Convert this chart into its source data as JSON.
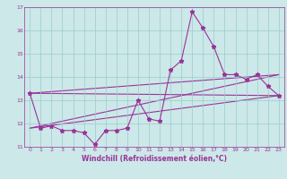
{
  "xlabel": "Windchill (Refroidissement éolien,°C)",
  "bg_color": "#cce8e8",
  "line_color": "#993399",
  "grid_color": "#99cccc",
  "hours": [
    0,
    1,
    2,
    3,
    4,
    5,
    6,
    7,
    8,
    9,
    10,
    11,
    12,
    13,
    14,
    15,
    16,
    17,
    18,
    19,
    20,
    21,
    22,
    23
  ],
  "windchill": [
    13.3,
    11.8,
    11.9,
    11.7,
    11.7,
    11.6,
    11.1,
    11.7,
    11.7,
    11.8,
    13.0,
    12.2,
    12.1,
    14.3,
    14.7,
    16.8,
    16.1,
    15.3,
    14.1,
    14.1,
    13.9,
    14.1,
    13.6,
    13.2
  ],
  "ylim": [
    11.0,
    17.0
  ],
  "xlim": [
    -0.5,
    23.5
  ],
  "yticks": [
    11,
    12,
    13,
    14,
    15,
    16,
    17
  ],
  "xticks": [
    0,
    1,
    2,
    3,
    4,
    5,
    6,
    7,
    8,
    9,
    10,
    11,
    12,
    13,
    14,
    15,
    16,
    17,
    18,
    19,
    20,
    21,
    22,
    23
  ],
  "marker": "*",
  "linewidth": 0.8,
  "markersize": 3.5,
  "extra_lines": [
    {
      "x": [
        0,
        23
      ],
      "y": [
        13.3,
        13.2
      ]
    },
    {
      "x": [
        0,
        23
      ],
      "y": [
        11.8,
        13.2
      ]
    },
    {
      "x": [
        0,
        23
      ],
      "y": [
        11.8,
        14.1
      ]
    },
    {
      "x": [
        0,
        23
      ],
      "y": [
        13.3,
        14.1
      ]
    }
  ],
  "spine_color": "#993399",
  "tick_fontsize": 4.5,
  "xlabel_fontsize": 5.5
}
